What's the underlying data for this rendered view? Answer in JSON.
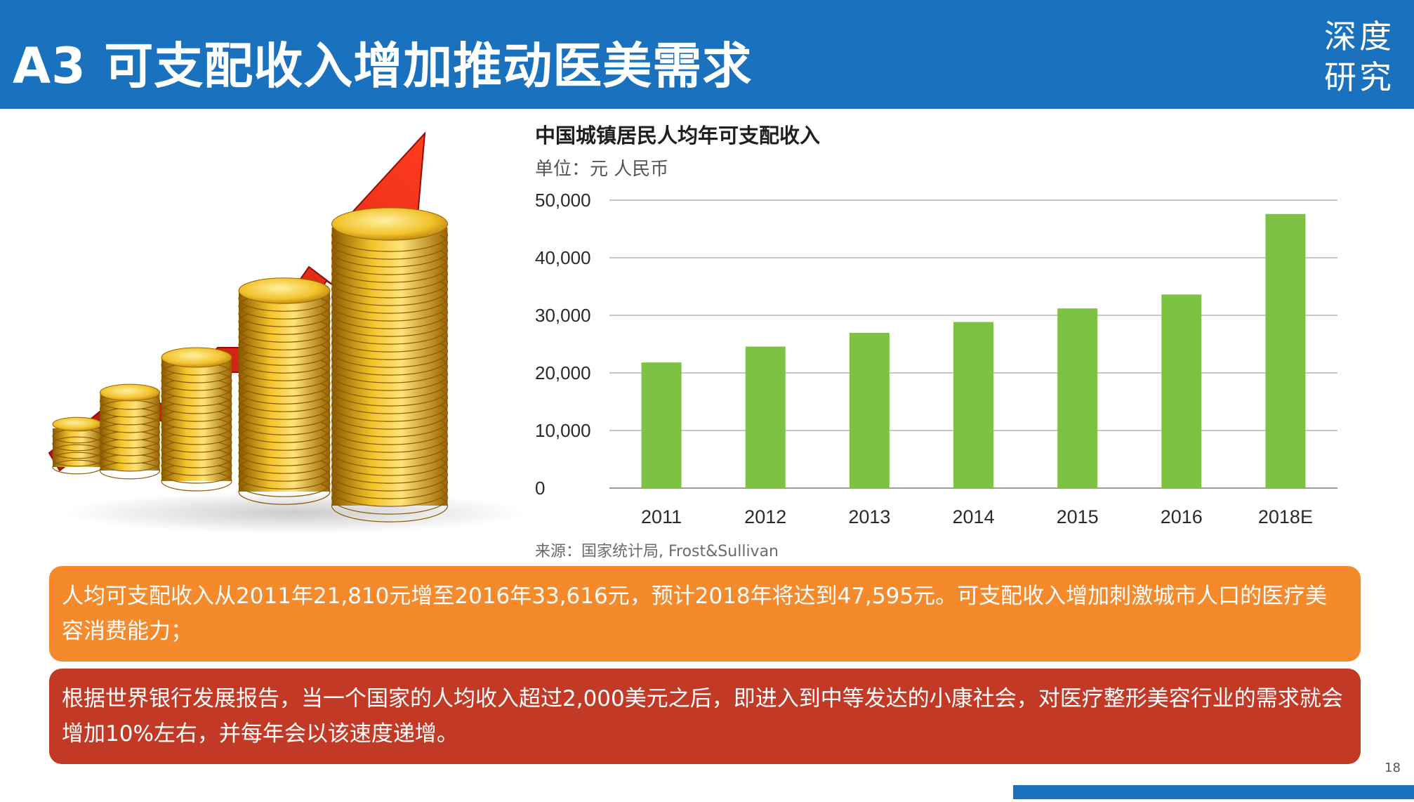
{
  "header": {
    "title": "A3 可支配收入增加推动医美需求",
    "logo": {
      "line1": "深度",
      "line2": "研究"
    }
  },
  "illustration": {
    "icon": "rising-coins-arrow-icon"
  },
  "chart_data": {
    "type": "bar",
    "title": "中国城镇居民人均年可支配收入",
    "unit_label": "单位：元 人民币",
    "categories": [
      "2011",
      "2012",
      "2013",
      "2014",
      "2015",
      "2016",
      "2018E"
    ],
    "values": [
      21810,
      24565,
      26955,
      28844,
      31195,
      33616,
      47595
    ],
    "yticks": [
      "0",
      "10,000",
      "20,000",
      "30,000",
      "40,000",
      "50,000"
    ],
    "ylim": [
      0,
      50000
    ],
    "grid": true,
    "bar_color": "#7dc242",
    "source": "来源：国家统计局, Frost&Sullivan"
  },
  "notes": {
    "orange": "人均可支配收入从2011年21,810元增至2016年33,616元，预计2018年将达到47,595元。可支配收入增加刺激城市人口的医疗美容消费能力；",
    "red": "根据世界银行发展报告，当一个国家的人均收入超过2,000美元之后，即进入到中等发达的小康社会，对医疗整形美容行业的需求就会增加10%左右，并每年会以该速度递增。"
  },
  "page_number": "18"
}
